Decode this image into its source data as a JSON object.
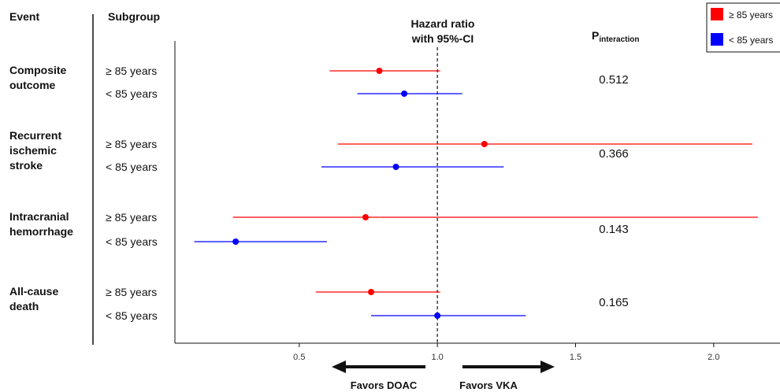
{
  "chart_data": {
    "type": "forest",
    "headers": {
      "event": "Event",
      "subgroup": "Subgroup",
      "hazard_line1": "Hazard ratio",
      "hazard_line2": "with 95%-CI",
      "p_main": "P",
      "p_sub": "interaction"
    },
    "x_ticks": [
      0.5,
      1.0,
      1.5,
      2.0
    ],
    "x_tick_labels": [
      "0.5",
      "1.0",
      "1.5",
      "2.0"
    ],
    "xlim": [
      0.05,
      2.24
    ],
    "reference_value": 1.0,
    "favors_left": "Favors DOAC",
    "favors_right": "Favors VKA",
    "legend": [
      {
        "label": "≥ 85 years",
        "color": "#ff0000"
      },
      {
        "label": "< 85 years",
        "color": "#0000ff"
      }
    ],
    "colors": {
      "ge85": "#ff0000",
      "lt85": "#0000ff"
    },
    "events": [
      {
        "lines": [
          "Composite",
          "outcome"
        ],
        "p_interaction": "0.512",
        "rows": [
          {
            "label": "≥ 85 years",
            "group": "ge85",
            "hr": 0.79,
            "lo": 0.61,
            "hi": 1.01
          },
          {
            "label": "< 85 years",
            "group": "lt85",
            "hr": 0.88,
            "lo": 0.71,
            "hi": 1.09
          }
        ]
      },
      {
        "lines": [
          "Recurrent",
          "ischemic",
          "stroke"
        ],
        "p_interaction": "0.366",
        "rows": [
          {
            "label": "≥ 85 years",
            "group": "ge85",
            "hr": 1.17,
            "lo": 0.64,
            "hi": 2.14
          },
          {
            "label": "< 85 years",
            "group": "lt85",
            "hr": 0.85,
            "lo": 0.58,
            "hi": 1.24
          }
        ]
      },
      {
        "lines": [
          "Intracranial",
          "hemorrhage"
        ],
        "p_interaction": "0.143",
        "rows": [
          {
            "label": "≥ 85 years",
            "group": "ge85",
            "hr": 0.74,
            "lo": 0.26,
            "hi": 2.16
          },
          {
            "label": "< 85 years",
            "group": "lt85",
            "hr": 0.27,
            "lo": 0.12,
            "hi": 0.6
          }
        ]
      },
      {
        "lines": [
          "All-cause",
          "death"
        ],
        "p_interaction": "0.165",
        "rows": [
          {
            "label": "≥ 85 years",
            "group": "ge85",
            "hr": 0.76,
            "lo": 0.56,
            "hi": 1.01
          },
          {
            "label": "< 85 years",
            "group": "lt85",
            "hr": 1.0,
            "lo": 0.76,
            "hi": 1.32
          }
        ]
      }
    ]
  }
}
